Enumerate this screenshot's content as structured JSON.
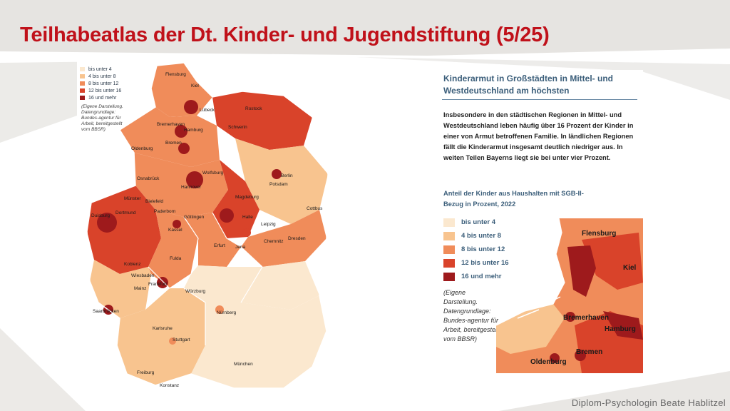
{
  "slide": {
    "title": "Teilhabeatlas der Dt. Kinder- und Jugendstiftung (5/25)",
    "author": "Diplom-Psychologin Beate Hablitzel"
  },
  "colors": {
    "title": "#c0111a",
    "class_1": "#fbe8cf",
    "class_2": "#f8c48f",
    "class_3": "#f08c5a",
    "class_4": "#d9432a",
    "class_5": "#9e1a1c"
  },
  "legend": {
    "items": [
      {
        "label": "bis unter 4",
        "color": "#fbe8cf"
      },
      {
        "label": "4 bis unter 8",
        "color": "#f8c48f"
      },
      {
        "label": "8 bis unter 12",
        "color": "#f08c5a"
      },
      {
        "label": "12 bis unter 16",
        "color": "#d9432a"
      },
      {
        "label": "16 und mehr",
        "color": "#9e1a1c"
      }
    ],
    "note": "(Eigene Darstellung. Datengrundlage: Bundes-agentur für Arbeit, bereitgestellt vom BBSR)"
  },
  "article": {
    "heading": "Kinderarmut in Großstädten in Mittel- und Westdeutschland am höchsten",
    "body": "Insbesondere in den städtischen Regionen in Mittel- und Westdeutschland leben häufig über 16 Prozent der Kinder in einer von Armut betroffenen Familie. In ländlichen Regionen fällt die Kinderarmut insgesamt deutlich niedriger aus. In weiten Teilen Bayerns liegt sie bei unter vier Prozent.",
    "subheading": "Anteil der Kinder aus Haushalten mit SGB-II-Bezug in Prozent, 2022"
  },
  "map_cities": {
    "flensburg": "Flensburg",
    "kiel": "Kiel",
    "luebeck": "Lübeck",
    "rostock": "Rostock",
    "bremerhaven": "Bremerhaven",
    "hamburg": "Hamburg",
    "schwerin": "Schwerin",
    "oldenburg": "Oldenburg",
    "bremen": "Bremen",
    "berlin": "Berlin",
    "potsdam": "Potsdam",
    "osnabrueck": "Osnabrück",
    "wolfsburg": "Wolfsburg",
    "hannover": "Hannover",
    "magdeburg": "Magdeburg",
    "muenster": "Münster",
    "bielefeld": "Bielefeld",
    "paderborn": "Paderborn",
    "goettingen": "Göttingen",
    "halle": "Halle",
    "cottbus": "Cottbus",
    "duisburg": "Duisburg",
    "dortmund": "Dortmund",
    "kassel": "Kassel",
    "leipzig": "Leipzig",
    "erfurt": "Erfurt",
    "jena": "Jena",
    "chemnitz": "Chemnitz",
    "dresden": "Dresden",
    "koblenz": "Koblenz",
    "fulda": "Fulda",
    "wiesbaden": "Wiesbaden",
    "frankfurt": "Frankfurt",
    "mainz": "Mainz",
    "wuerzburg": "Würzburg",
    "saarbruecken": "Saarbrücken",
    "nuernberg": "Nürnberg",
    "karlsruhe": "Karlsruhe",
    "stuttgart": "Stuttgart",
    "muenchen": "München",
    "freiburg": "Freiburg",
    "konstanz": "Konstanz"
  }
}
